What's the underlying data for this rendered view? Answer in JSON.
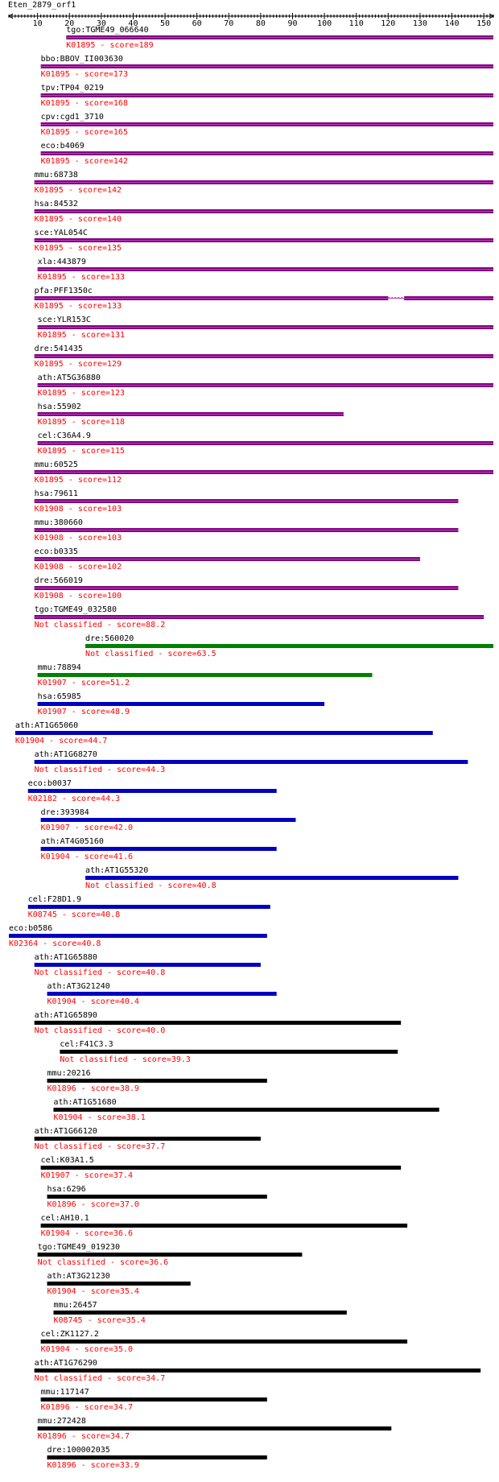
{
  "query_title": "Eten_2879_orf1",
  "axis": {
    "min": 1,
    "max": 153,
    "ticks": [
      10,
      20,
      30,
      40,
      50,
      60,
      70,
      80,
      90,
      100,
      110,
      120,
      130,
      140,
      150
    ]
  },
  "colors": {
    "purple": "#800080",
    "green": "#008000",
    "blue": "#0000c0",
    "black": "#000000",
    "label": "#000000",
    "score": "#ff0000"
  },
  "hits": [
    {
      "gene": "tgo:TGME49_066640",
      "ko": "K01895",
      "score": "189",
      "start": 19,
      "end": 153,
      "color": "purple"
    },
    {
      "gene": "bbo:BBOV_II003630",
      "ko": "K01895",
      "score": "173",
      "start": 11,
      "end": 153,
      "color": "purple"
    },
    {
      "gene": "tpv:TP04_0219",
      "ko": "K01895",
      "score": "168",
      "start": 11,
      "end": 153,
      "color": "purple"
    },
    {
      "gene": "cpv:cgd1_3710",
      "ko": "K01895",
      "score": "165",
      "start": 11,
      "end": 153,
      "color": "purple"
    },
    {
      "gene": "eco:b4069",
      "ko": "K01895",
      "score": "142",
      "start": 11,
      "end": 153,
      "color": "purple"
    },
    {
      "gene": "mmu:68738",
      "ko": "K01895",
      "score": "142",
      "start": 9,
      "end": 153,
      "color": "purple"
    },
    {
      "gene": "hsa:84532",
      "ko": "K01895",
      "score": "140",
      "start": 9,
      "end": 153,
      "color": "purple"
    },
    {
      "gene": "sce:YAL054C",
      "ko": "K01895",
      "score": "135",
      "start": 9,
      "end": 153,
      "color": "purple"
    },
    {
      "gene": "xla:443879",
      "ko": "K01895",
      "score": "133",
      "start": 10,
      "end": 153,
      "color": "purple"
    },
    {
      "gene": "pfa:PFF1350c",
      "ko": "K01895",
      "score": "133",
      "start": 9,
      "end": 153,
      "color": "purple",
      "gap": [
        120,
        125
      ]
    },
    {
      "gene": "sce:YLR153C",
      "ko": "K01895",
      "score": "131",
      "start": 10,
      "end": 153,
      "color": "purple"
    },
    {
      "gene": "dre:541435",
      "ko": "K01895",
      "score": "129",
      "start": 9,
      "end": 153,
      "color": "purple"
    },
    {
      "gene": "ath:AT5G36880",
      "ko": "K01895",
      "score": "123",
      "start": 10,
      "end": 153,
      "color": "purple"
    },
    {
      "gene": "hsa:55902",
      "ko": "K01895",
      "score": "118",
      "start": 10,
      "end": 106,
      "color": "purple"
    },
    {
      "gene": "cel:C36A4.9",
      "ko": "K01895",
      "score": "115",
      "start": 10,
      "end": 153,
      "color": "purple"
    },
    {
      "gene": "mmu:60525",
      "ko": "K01895",
      "score": "112",
      "start": 9,
      "end": 153,
      "color": "purple"
    },
    {
      "gene": "hsa:79611",
      "ko": "K01908",
      "score": "103",
      "start": 9,
      "end": 142,
      "color": "purple"
    },
    {
      "gene": "mmu:380660",
      "ko": "K01908",
      "score": "103",
      "start": 9,
      "end": 142,
      "color": "purple"
    },
    {
      "gene": "eco:b0335",
      "ko": "K01908",
      "score": "102",
      "start": 9,
      "end": 130,
      "color": "purple"
    },
    {
      "gene": "dre:566019",
      "ko": "K01908",
      "score": "100",
      "start": 9,
      "end": 142,
      "color": "purple"
    },
    {
      "gene": "tgo:TGME49_032580",
      "ko": "Not classified",
      "score": "88.2",
      "start": 9,
      "end": 150,
      "color": "purple"
    },
    {
      "gene": "dre:560020",
      "ko": "Not classified",
      "score": "63.5",
      "start": 25,
      "end": 153,
      "color": "green"
    },
    {
      "gene": "mmu:78894",
      "ko": "K01907",
      "score": "51.2",
      "start": 10,
      "end": 115,
      "color": "green"
    },
    {
      "gene": "hsa:65985",
      "ko": "K01907",
      "score": "48.9",
      "start": 10,
      "end": 100,
      "color": "blue"
    },
    {
      "gene": "ath:AT1G65060",
      "ko": "K01904",
      "score": "44.7",
      "start": 3,
      "end": 134,
      "color": "blue"
    },
    {
      "gene": "ath:AT1G68270",
      "ko": "Not classified",
      "score": "44.3",
      "start": 9,
      "end": 145,
      "color": "blue"
    },
    {
      "gene": "eco:b0037",
      "ko": "K02182",
      "score": "44.3",
      "start": 7,
      "end": 85,
      "color": "blue"
    },
    {
      "gene": "dre:393984",
      "ko": "K01907",
      "score": "42.0",
      "start": 11,
      "end": 91,
      "color": "blue"
    },
    {
      "gene": "ath:AT4G05160",
      "ko": "K01904",
      "score": "41.6",
      "start": 11,
      "end": 85,
      "color": "blue"
    },
    {
      "gene": "ath:AT1G55320",
      "ko": "Not classified",
      "score": "40.8",
      "start": 25,
      "end": 142,
      "color": "blue"
    },
    {
      "gene": "cel:F28D1.9",
      "ko": "K08745",
      "score": "40.8",
      "start": 7,
      "end": 83,
      "color": "blue"
    },
    {
      "gene": "eco:b0586",
      "ko": "K02364",
      "score": "40.8",
      "start": 1,
      "end": 82,
      "color": "blue"
    },
    {
      "gene": "ath:AT1G65880",
      "ko": "Not classified",
      "score": "40.8",
      "start": 9,
      "end": 80,
      "color": "blue"
    },
    {
      "gene": "ath:AT3G21240",
      "ko": "K01904",
      "score": "40.4",
      "start": 13,
      "end": 85,
      "color": "blue"
    },
    {
      "gene": "ath:AT1G65890",
      "ko": "Not classified",
      "score": "40.0",
      "start": 9,
      "end": 124,
      "color": "black"
    },
    {
      "gene": "cel:F41C3.3",
      "ko": "Not classified",
      "score": "39.3",
      "start": 17,
      "end": 123,
      "color": "black"
    },
    {
      "gene": "mmu:20216",
      "ko": "K01896",
      "score": "38.9",
      "start": 13,
      "end": 82,
      "color": "black"
    },
    {
      "gene": "ath:AT1G51680",
      "ko": "K01904",
      "score": "38.1",
      "start": 15,
      "end": 136,
      "color": "black"
    },
    {
      "gene": "ath:AT1G66120",
      "ko": "Not classified",
      "score": "37.7",
      "start": 9,
      "end": 80,
      "color": "black"
    },
    {
      "gene": "cel:K03A1.5",
      "ko": "K01907",
      "score": "37.4",
      "start": 11,
      "end": 124,
      "color": "black"
    },
    {
      "gene": "hsa:6296",
      "ko": "K01896",
      "score": "37.0",
      "start": 13,
      "end": 82,
      "color": "black"
    },
    {
      "gene": "cel:AH10.1",
      "ko": "K01904",
      "score": "36.6",
      "start": 11,
      "end": 126,
      "color": "black"
    },
    {
      "gene": "tgo:TGME49_019230",
      "ko": "Not classified",
      "score": "36.6",
      "start": 10,
      "end": 93,
      "color": "black"
    },
    {
      "gene": "ath:AT3G21230",
      "ko": "K01904",
      "score": "35.4",
      "start": 13,
      "end": 58,
      "color": "black"
    },
    {
      "gene": "mmu:26457",
      "ko": "K08745",
      "score": "35.4",
      "start": 15,
      "end": 107,
      "color": "black"
    },
    {
      "gene": "cel:ZK1127.2",
      "ko": "K01904",
      "score": "35.0",
      "start": 11,
      "end": 126,
      "color": "black"
    },
    {
      "gene": "ath:AT1G76290",
      "ko": "Not classified",
      "score": "34.7",
      "start": 9,
      "end": 149,
      "color": "black"
    },
    {
      "gene": "mmu:117147",
      "ko": "K01896",
      "score": "34.7",
      "start": 11,
      "end": 82,
      "color": "black"
    },
    {
      "gene": "mmu:272428",
      "ko": "K01896",
      "score": "34.7",
      "start": 10,
      "end": 121,
      "color": "black"
    },
    {
      "gene": "dre:100002035",
      "ko": "K01896",
      "score": "33.9",
      "start": 13,
      "end": 82,
      "color": "black"
    }
  ]
}
